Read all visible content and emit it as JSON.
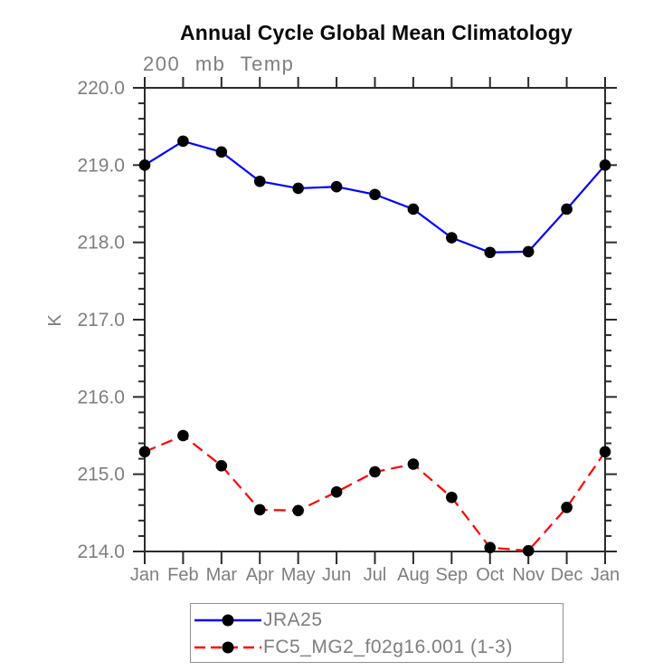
{
  "chart_data": {
    "type": "line",
    "title": "Annual Cycle Global Mean Climatology",
    "subtitle": "200 mb Temp",
    "ylabel": "K",
    "xlabel": "",
    "x_categories": [
      "Jan",
      "Feb",
      "Mar",
      "Apr",
      "May",
      "Jun",
      "Jul",
      "Aug",
      "Sep",
      "Oct",
      "Nov",
      "Dec",
      "Jan"
    ],
    "ylim": [
      214.0,
      220.0
    ],
    "y_major_step": 1.0,
    "y_minor_step": 0.2,
    "y_tick_labels": [
      "214.0",
      "215.0",
      "216.0",
      "217.0",
      "218.0",
      "219.0",
      "220.0"
    ],
    "grid": false,
    "legend_position": "bottom",
    "axis_color": "#2b2b2b",
    "label_color": "#7e7e7e",
    "series": [
      {
        "name": "JRA25",
        "color": "#0000ff",
        "line_style": "solid",
        "marker": "filled-circle",
        "marker_color": "#000000",
        "values": [
          219.0,
          219.31,
          219.17,
          218.79,
          218.7,
          218.72,
          218.62,
          218.43,
          218.06,
          217.87,
          217.88,
          218.43,
          219.0
        ]
      },
      {
        "name": "FC5_MG2_f02g16.001 (1-3)",
        "color": "#ff0000",
        "line_style": "dashed",
        "marker": "filled-circle",
        "marker_color": "#000000",
        "values": [
          215.29,
          215.5,
          215.11,
          214.54,
          214.53,
          214.77,
          215.03,
          215.13,
          214.7,
          214.05,
          214.01,
          214.57,
          215.29
        ]
      }
    ]
  }
}
